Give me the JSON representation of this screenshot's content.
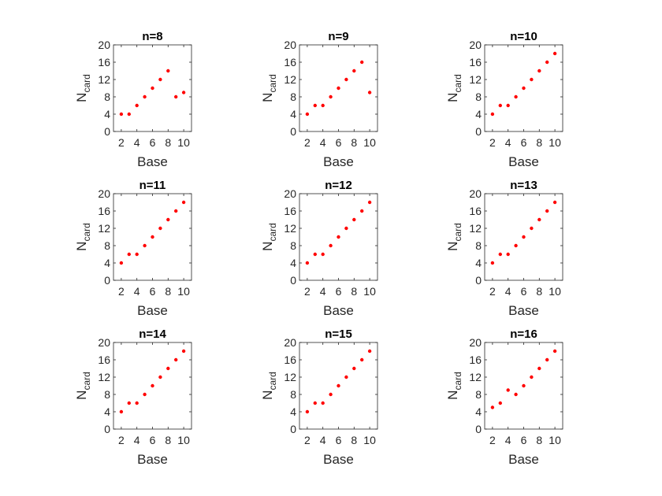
{
  "figure": {
    "background": "#ffffff",
    "marker_color": "#ff0000",
    "axis_color": "#262626"
  },
  "chart_data": [
    {
      "type": "scatter",
      "title": "n=8",
      "xlabel": "Base",
      "ylabel_main": "N",
      "ylabel_sub": "card",
      "xlim": [
        1,
        11
      ],
      "ylim": [
        0,
        20
      ],
      "xticks": [
        "2",
        "4",
        "6",
        "8",
        "10"
      ],
      "yticks": [
        "0",
        "4",
        "8",
        "12",
        "16",
        "20"
      ],
      "x": [
        2,
        3,
        4,
        5,
        6,
        7,
        8,
        9,
        10
      ],
      "y": [
        4,
        4,
        6,
        8,
        10,
        12,
        14,
        8,
        9
      ]
    },
    {
      "type": "scatter",
      "title": "n=9",
      "xlabel": "Base",
      "ylabel_main": "N",
      "ylabel_sub": "card",
      "xlim": [
        1,
        11
      ],
      "ylim": [
        0,
        20
      ],
      "xticks": [
        "2",
        "4",
        "6",
        "8",
        "10"
      ],
      "yticks": [
        "0",
        "4",
        "8",
        "12",
        "16",
        "20"
      ],
      "x": [
        2,
        3,
        4,
        5,
        6,
        7,
        8,
        9,
        10
      ],
      "y": [
        4,
        6,
        6,
        8,
        10,
        12,
        14,
        16,
        9
      ]
    },
    {
      "type": "scatter",
      "title": "n=10",
      "xlabel": "Base",
      "ylabel_main": "N",
      "ylabel_sub": "card",
      "xlim": [
        1,
        11
      ],
      "ylim": [
        0,
        20
      ],
      "xticks": [
        "2",
        "4",
        "6",
        "8",
        "10"
      ],
      "yticks": [
        "0",
        "4",
        "8",
        "12",
        "16",
        "20"
      ],
      "x": [
        2,
        3,
        4,
        5,
        6,
        7,
        8,
        9,
        10
      ],
      "y": [
        4,
        6,
        6,
        8,
        10,
        12,
        14,
        16,
        18
      ]
    },
    {
      "type": "scatter",
      "title": "n=11",
      "xlabel": "Base",
      "ylabel_main": "N",
      "ylabel_sub": "card",
      "xlim": [
        1,
        11
      ],
      "ylim": [
        0,
        20
      ],
      "xticks": [
        "2",
        "4",
        "6",
        "8",
        "10"
      ],
      "yticks": [
        "0",
        "4",
        "8",
        "12",
        "16",
        "20"
      ],
      "x": [
        2,
        3,
        4,
        5,
        6,
        7,
        8,
        9,
        10
      ],
      "y": [
        4,
        6,
        6,
        8,
        10,
        12,
        14,
        16,
        18
      ]
    },
    {
      "type": "scatter",
      "title": "n=12",
      "xlabel": "Base",
      "ylabel_main": "N",
      "ylabel_sub": "card",
      "xlim": [
        1,
        11
      ],
      "ylim": [
        0,
        20
      ],
      "xticks": [
        "2",
        "4",
        "6",
        "8",
        "10"
      ],
      "yticks": [
        "0",
        "4",
        "8",
        "12",
        "16",
        "20"
      ],
      "x": [
        2,
        3,
        4,
        5,
        6,
        7,
        8,
        9,
        10
      ],
      "y": [
        4,
        6,
        6,
        8,
        10,
        12,
        14,
        16,
        18
      ]
    },
    {
      "type": "scatter",
      "title": "n=13",
      "xlabel": "Base",
      "ylabel_main": "N",
      "ylabel_sub": "card",
      "xlim": [
        1,
        11
      ],
      "ylim": [
        0,
        20
      ],
      "xticks": [
        "2",
        "4",
        "6",
        "8",
        "10"
      ],
      "yticks": [
        "0",
        "4",
        "8",
        "12",
        "16",
        "20"
      ],
      "x": [
        2,
        3,
        4,
        5,
        6,
        7,
        8,
        9,
        10
      ],
      "y": [
        4,
        6,
        6,
        8,
        10,
        12,
        14,
        16,
        18
      ]
    },
    {
      "type": "scatter",
      "title": "n=14",
      "xlabel": "Base",
      "ylabel_main": "N",
      "ylabel_sub": "card",
      "xlim": [
        1,
        11
      ],
      "ylim": [
        0,
        20
      ],
      "xticks": [
        "2",
        "4",
        "6",
        "8",
        "10"
      ],
      "yticks": [
        "0",
        "4",
        "8",
        "12",
        "16",
        "20"
      ],
      "x": [
        2,
        3,
        4,
        5,
        6,
        7,
        8,
        9,
        10
      ],
      "y": [
        4,
        6,
        6,
        8,
        10,
        12,
        14,
        16,
        18
      ]
    },
    {
      "type": "scatter",
      "title": "n=15",
      "xlabel": "Base",
      "ylabel_main": "N",
      "ylabel_sub": "card",
      "xlim": [
        1,
        11
      ],
      "ylim": [
        0,
        20
      ],
      "xticks": [
        "2",
        "4",
        "6",
        "8",
        "10"
      ],
      "yticks": [
        "0",
        "4",
        "8",
        "12",
        "16",
        "20"
      ],
      "x": [
        2,
        3,
        4,
        5,
        6,
        7,
        8,
        9,
        10
      ],
      "y": [
        4,
        6,
        6,
        8,
        10,
        12,
        14,
        16,
        18
      ]
    },
    {
      "type": "scatter",
      "title": "n=16",
      "xlabel": "Base",
      "ylabel_main": "N",
      "ylabel_sub": "card",
      "xlim": [
        1,
        11
      ],
      "ylim": [
        0,
        20
      ],
      "xticks": [
        "2",
        "4",
        "6",
        "8",
        "10"
      ],
      "yticks": [
        "0",
        "4",
        "8",
        "12",
        "16",
        "20"
      ],
      "x": [
        2,
        3,
        4,
        5,
        6,
        7,
        8,
        9,
        10
      ],
      "y": [
        5,
        6,
        9,
        8,
        10,
        12,
        14,
        16,
        18
      ]
    }
  ]
}
